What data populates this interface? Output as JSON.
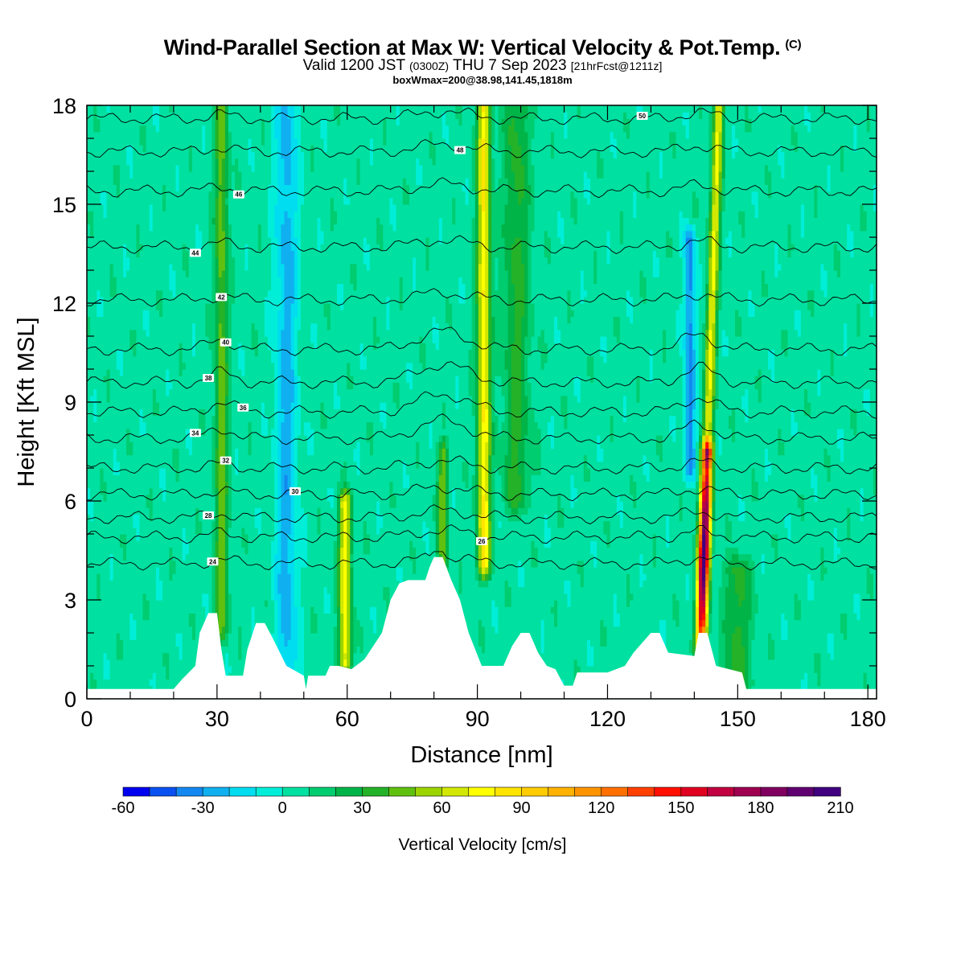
{
  "header": {
    "title": "Wind-Parallel Section at Max W: Vertical Velocity & Pot.Temp.",
    "title_mark": "(C)",
    "valid_a": "Valid 1200 JST ",
    "valid_b": "(0300Z)",
    "valid_c": " THU 7 Sep 2023 ",
    "valid_d": "[21hrFcst@1211z]",
    "box_info": "boxWmax=200@38.98,141.45,1818m"
  },
  "chart_data": {
    "type": "heatmap",
    "xlabel": "Distance [nm]",
    "ylabel": "Height [Kft MSL]",
    "xlim": [
      0,
      182
    ],
    "ylim": [
      0,
      18
    ],
    "x_ticks": [
      0,
      30,
      60,
      90,
      120,
      150,
      180
    ],
    "x_tick_labels": [
      "0",
      "30",
      "60",
      "90",
      "120",
      "150",
      "180"
    ],
    "y_ticks": [
      0,
      3,
      6,
      9,
      12,
      15,
      18
    ],
    "y_tick_labels": [
      "0",
      "3",
      "6",
      "9",
      "12",
      "15",
      "18"
    ],
    "background_value": 5,
    "updrafts": [
      {
        "x": 31,
        "y_from": 2,
        "y_to": 18,
        "peak": 40,
        "width": 1.5
      },
      {
        "x": 46,
        "y_from": 0.5,
        "y_to": 18,
        "peak": -30,
        "width": 2.5
      },
      {
        "x": 59.5,
        "y_from": 1,
        "y_to": 6,
        "peak": 70,
        "width": 1.4
      },
      {
        "x": 91.5,
        "y_from": 4,
        "y_to": 18,
        "peak": 75,
        "width": 1.5
      },
      {
        "x": 99,
        "y_from": 6,
        "y_to": 18,
        "peak": 28,
        "width": 3
      },
      {
        "x": 141.5,
        "y_from": 1.5,
        "y_to": 7.5,
        "peak": 200,
        "width": 1.3
      },
      {
        "x": 143,
        "y_from": 7.5,
        "y_to": 18,
        "peak": 65,
        "width": 1.2
      },
      {
        "x": 139,
        "y_from": 7,
        "y_to": 14,
        "peak": -40,
        "width": 1.3
      },
      {
        "x": 82,
        "y_from": 4,
        "y_to": 7.5,
        "peak": 40,
        "width": 1.2
      },
      {
        "x": 150,
        "y_from": 0.5,
        "y_to": 4,
        "peak": 30,
        "width": 3
      }
    ],
    "terrain": [
      [
        0,
        0.3
      ],
      [
        20,
        0.3
      ],
      [
        22,
        0.6
      ],
      [
        25,
        1
      ],
      [
        26,
        2
      ],
      [
        28,
        2.6
      ],
      [
        30,
        2.6
      ],
      [
        31,
        1.5
      ],
      [
        32,
        0.7
      ],
      [
        36,
        0.7
      ],
      [
        37,
        1.5
      ],
      [
        39,
        2.3
      ],
      [
        41,
        2.3
      ],
      [
        43,
        1.8
      ],
      [
        46,
        1
      ],
      [
        50,
        0.7
      ],
      [
        50.5,
        0.3
      ],
      [
        51,
        0.7
      ],
      [
        55,
        0.7
      ],
      [
        56,
        1
      ],
      [
        58,
        1
      ],
      [
        61,
        0.9
      ],
      [
        64,
        1.2
      ],
      [
        68,
        2
      ],
      [
        70,
        3
      ],
      [
        72,
        3.5
      ],
      [
        74,
        3.6
      ],
      [
        78,
        3.6
      ],
      [
        79,
        4
      ],
      [
        80,
        4.3
      ],
      [
        82,
        4.3
      ],
      [
        84,
        3.6
      ],
      [
        86,
        3
      ],
      [
        88,
        2
      ],
      [
        91,
        1
      ],
      [
        96,
        1
      ],
      [
        98,
        1.6
      ],
      [
        100,
        2
      ],
      [
        102,
        2
      ],
      [
        104,
        1.4
      ],
      [
        106,
        1
      ],
      [
        108,
        0.9
      ],
      [
        110,
        0.4
      ],
      [
        112,
        0.4
      ],
      [
        113,
        0.8
      ],
      [
        120,
        0.8
      ],
      [
        124,
        1
      ],
      [
        126,
        1.4
      ],
      [
        130,
        2
      ],
      [
        132,
        2
      ],
      [
        134,
        1.4
      ],
      [
        140,
        1.3
      ],
      [
        141,
        2
      ],
      [
        143,
        2
      ],
      [
        145,
        1
      ],
      [
        151,
        0.8
      ],
      [
        152,
        0.3
      ],
      [
        182,
        0.3
      ]
    ],
    "theta_contours": [
      {
        "level": 24,
        "y_base": 4.1,
        "label_x": 29
      },
      {
        "level": 26,
        "y_base": 4.9,
        "label_x": 91
      },
      {
        "level": 28,
        "y_base": 5.5,
        "label_x": 28
      },
      {
        "level": 30,
        "y_base": 6.2,
        "label_x": 48
      },
      {
        "level": 32,
        "y_base": 7.0,
        "label_x": 32
      },
      {
        "level": 34,
        "y_base": 7.9,
        "label_x": 25
      },
      {
        "level": 36,
        "y_base": 8.7,
        "label_x": 36
      },
      {
        "level": 38,
        "y_base": 9.6,
        "label_x": 28
      },
      {
        "level": 40,
        "y_base": 10.6,
        "label_x": 32
      },
      {
        "level": 42,
        "y_base": 12.1,
        "label_x": 31
      },
      {
        "level": 44,
        "y_base": 13.7,
        "label_x": 25
      },
      {
        "level": 46,
        "y_base": 15.4,
        "label_x": 35
      },
      {
        "level": 48,
        "y_base": 16.6,
        "label_x": 86
      },
      {
        "level": 50,
        "y_base": 17.6,
        "label_x": 128
      }
    ],
    "colorbar": {
      "title": "Vertical Velocity [cm/s]",
      "levels": [
        -60,
        -50,
        -40,
        -30,
        -20,
        -10,
        0,
        10,
        20,
        30,
        40,
        50,
        60,
        70,
        80,
        90,
        100,
        110,
        120,
        130,
        140,
        150,
        160,
        170,
        180,
        190,
        200,
        210
      ],
      "tick_values": [
        -60,
        -30,
        0,
        30,
        60,
        90,
        120,
        150,
        180,
        210
      ],
      "tick_labels": [
        "-60",
        "-30",
        "0",
        "30",
        "60",
        "90",
        "120",
        "150",
        "180",
        "210"
      ],
      "colors": [
        "#0000f0",
        "#0a50f0",
        "#1288f0",
        "#10b0f0",
        "#00dcf0",
        "#00eed8",
        "#00e0a0",
        "#00cc70",
        "#00b448",
        "#24b228",
        "#60c010",
        "#9cd400",
        "#d2e800",
        "#ffff00",
        "#ffe400",
        "#ffcc00",
        "#ffb200",
        "#ff9400",
        "#ff7000",
        "#ff4000",
        "#ff1000",
        "#e00020",
        "#c00040",
        "#a00050",
        "#800060",
        "#600070",
        "#400080"
      ]
    }
  }
}
